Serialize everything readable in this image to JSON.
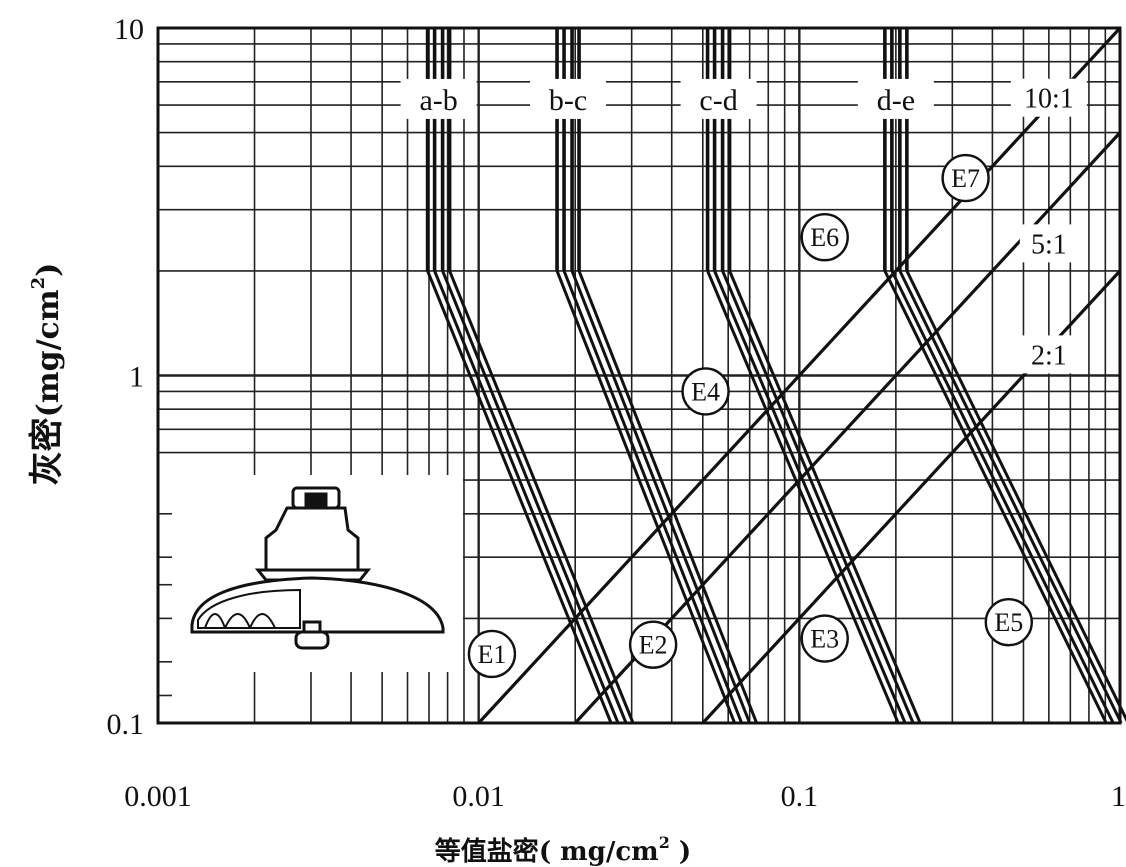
{
  "chart_data": {
    "type": "line",
    "x_scale": "log",
    "y_scale": "log",
    "xlim": [
      0.001,
      1
    ],
    "ylim": [
      0.1,
      10
    ],
    "x_ticks": [
      "0.001",
      "0.01",
      "0.1",
      "1"
    ],
    "y_ticks": [
      "0.1",
      "1",
      "10"
    ],
    "grid": true,
    "xlabel_main": "等值盐密",
    "xlabel_unit": "( mg/cm",
    "xlabel_sup": "2",
    "xlabel_close": " )",
    "ylabel_main": "灰密",
    "ylabel_unit": "(mg/cm",
    "ylabel_sup": "2",
    "ylabel_close": ")",
    "zone_labels": [
      {
        "text": "a-b",
        "x": 0.0075,
        "y": 6.25
      },
      {
        "text": "b-c",
        "x": 0.019,
        "y": 6.25
      },
      {
        "text": "c-d",
        "x": 0.056,
        "y": 6.25
      },
      {
        "text": "d-e",
        "x": 0.2,
        "y": 6.25
      }
    ],
    "zone_bands": [
      {
        "x_top": 0.0075,
        "x_bottom": 0.028
      },
      {
        "x_top": 0.019,
        "x_bottom": 0.068
      },
      {
        "x_top": 0.056,
        "x_bottom": 0.22
      },
      {
        "x_top": 0.2,
        "x_bottom": 0.98
      }
    ],
    "zone_band_knee_y": 2,
    "ratio_lines": [
      {
        "label": "10:1",
        "ratio": 10,
        "label_x": 0.6,
        "label_y": 6.3
      },
      {
        "label": "5:1",
        "ratio": 5,
        "label_x": 0.6,
        "label_y": 2.4
      },
      {
        "label": "2:1",
        "ratio": 2,
        "label_x": 0.6,
        "label_y": 1.15
      }
    ],
    "points": [
      {
        "label": "E1",
        "x": 0.011,
        "y": 0.158
      },
      {
        "label": "E2",
        "x": 0.035,
        "y": 0.168
      },
      {
        "label": "E3",
        "x": 0.12,
        "y": 0.175
      },
      {
        "label": "E4",
        "x": 0.051,
        "y": 0.9
      },
      {
        "label": "E5",
        "x": 0.45,
        "y": 0.195
      },
      {
        "label": "E6",
        "x": 0.12,
        "y": 2.5
      },
      {
        "label": "E7",
        "x": 0.33,
        "y": 3.7
      }
    ]
  }
}
